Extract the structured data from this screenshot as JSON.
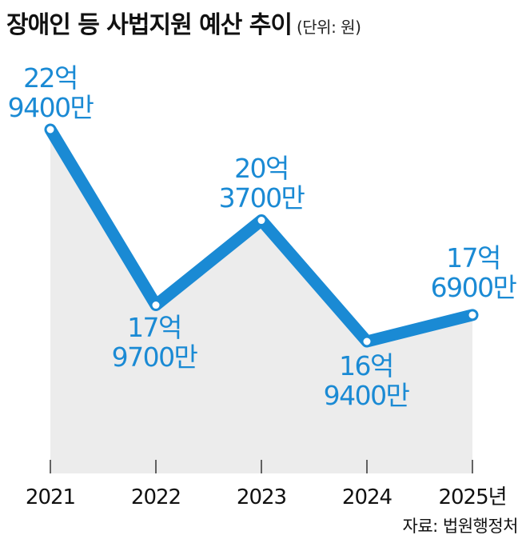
{
  "header": {
    "title": "장애인 등 사법지원 예산 추이",
    "unit": "(단위: 원)"
  },
  "source": "자료: 법원행정처",
  "colors": {
    "line": "#1a8ad4",
    "label": "#1a8ad4",
    "area": "#ececec",
    "axis": "#333333",
    "text": "#111111"
  },
  "chart_data": {
    "type": "line",
    "categories": [
      "2021",
      "2022",
      "2023",
      "2024",
      "2025년"
    ],
    "values": [
      2294000000,
      1797000000,
      2037000000,
      1694000000,
      1769000000
    ],
    "labels": [
      [
        "22억",
        "9400만"
      ],
      [
        "17억",
        "9700만"
      ],
      [
        "20억",
        "3700만"
      ],
      [
        "16억",
        "9400만"
      ],
      [
        "17억",
        "6900만"
      ]
    ],
    "title": "장애인 등 사법지원 예산 추이",
    "ylabel": "",
    "xlabel": "",
    "grid": false
  }
}
